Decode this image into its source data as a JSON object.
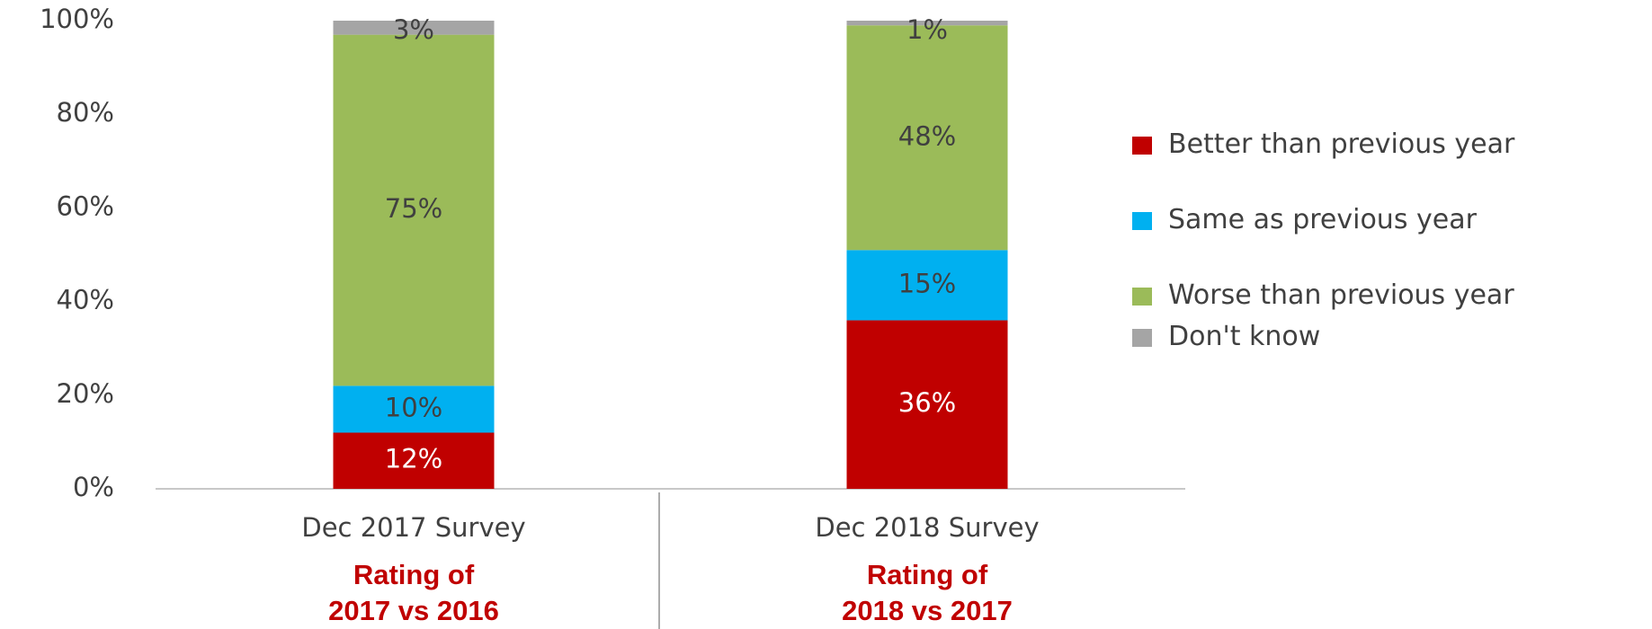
{
  "chart_data": {
    "type": "stacked_bar",
    "categories": [
      "Dec 2017 Survey",
      "Dec 2018 Survey"
    ],
    "category_notes": [
      [
        "Rating of",
        "2017 vs 2016"
      ],
      [
        "Rating of",
        "2018 vs 2017"
      ]
    ],
    "series": [
      {
        "name": "Better than previous year",
        "color": "#c00000",
        "label_color": "#ffffff",
        "values": [
          12,
          36
        ],
        "value_labels": [
          "12%",
          "36%"
        ]
      },
      {
        "name": "Same as previous year",
        "color": "#00b0f0",
        "label_color": "#404040",
        "values": [
          10,
          15
        ],
        "value_labels": [
          "10%",
          "15%"
        ]
      },
      {
        "name": "Worse than previous year",
        "color": "#9bbb59",
        "label_color": "#404040",
        "values": [
          75,
          48
        ],
        "value_labels": [
          "75%",
          "48%"
        ]
      },
      {
        "name": "Don't know",
        "color": "#a5a5a5",
        "label_color": "#404040",
        "values": [
          3,
          1
        ],
        "value_labels": [
          "3%",
          "1%"
        ]
      }
    ],
    "ylim": [
      0,
      100
    ],
    "yticks": [
      {
        "value": 0,
        "label": "0%"
      },
      {
        "value": 20,
        "label": "20%"
      },
      {
        "value": 40,
        "label": "40%"
      },
      {
        "value": 60,
        "label": "60%"
      },
      {
        "value": 80,
        "label": "80%"
      },
      {
        "value": 100,
        "label": "100%"
      }
    ],
    "legend": "right",
    "note_color": "#c00000"
  }
}
